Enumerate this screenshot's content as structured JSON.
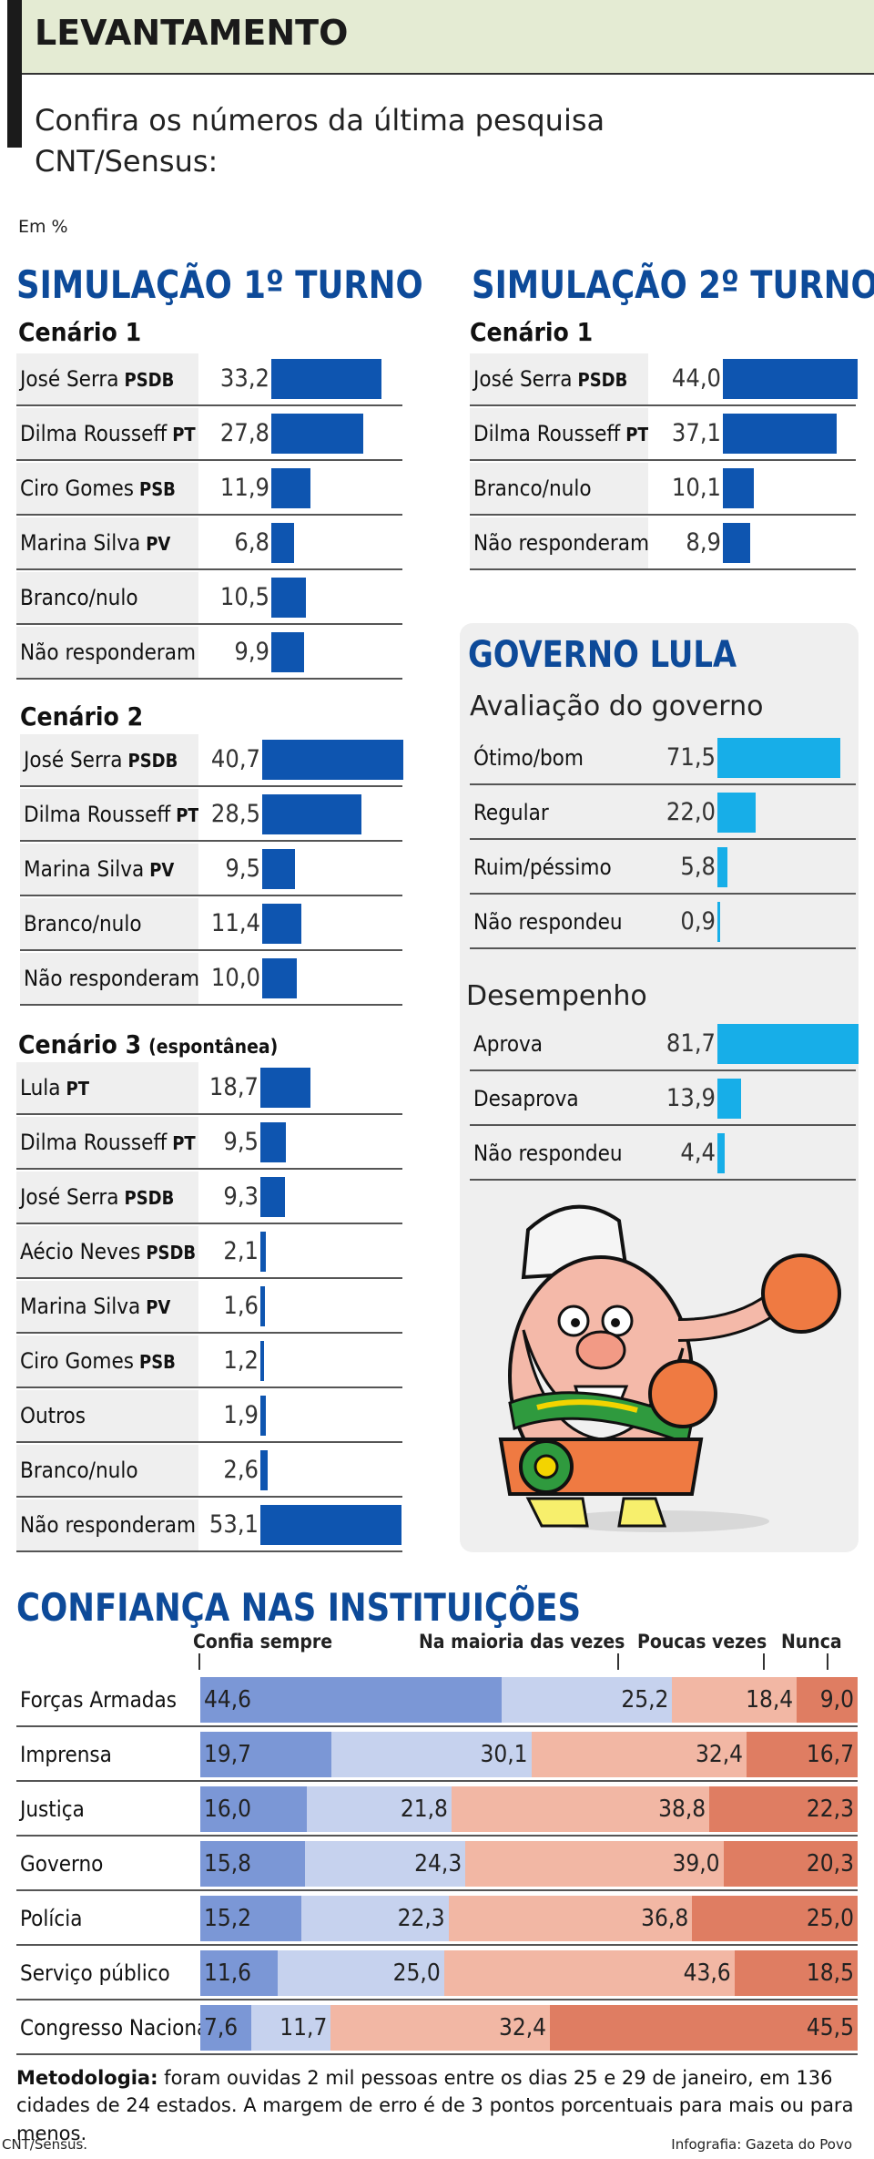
{
  "header": {
    "kicker": "LEVANTAMENTO",
    "intro": "Confira os números da última pesquisa CNT/Sensus:",
    "unit": "Em %"
  },
  "colors": {
    "dark_bar": "#0e55b0",
    "light_bar": "#17aee8",
    "title": "#0d4a99"
  },
  "chart_data": [
    {
      "type": "bar",
      "title": "SIMULAÇÃO 1º TURNO",
      "subtitle": "Cenário 1",
      "categories": [
        "José Serra",
        "Dilma Rousseff",
        "Ciro Gomes",
        "Marina Silva",
        "Branco/nulo",
        "Não responderam"
      ],
      "parties": [
        "PSDB",
        "PT",
        "PSB",
        "PV",
        "",
        ""
      ],
      "values": [
        33.2,
        27.8,
        11.9,
        6.8,
        10.5,
        9.9
      ],
      "labels": [
        "33,2",
        "27,8",
        "11,9",
        "6,8",
        "10,5",
        "9,9"
      ]
    },
    {
      "type": "bar",
      "subtitle": "Cenário 2",
      "categories": [
        "José Serra",
        "Dilma Rousseff",
        "Marina Silva",
        "Branco/nulo",
        "Não responderam"
      ],
      "parties": [
        "PSDB",
        "PT",
        "PV",
        "",
        ""
      ],
      "values": [
        40.7,
        28.5,
        9.5,
        11.4,
        10.0
      ],
      "labels": [
        "40,7",
        "28,5",
        "9,5",
        "11,4",
        "10,0"
      ]
    },
    {
      "type": "bar",
      "subtitle": "Cenário 3",
      "note": "(espontânea)",
      "categories": [
        "Lula",
        "Dilma Rousseff",
        "José Serra",
        "Aécio Neves",
        "Marina Silva",
        "Ciro Gomes",
        "Outros",
        "Branco/nulo",
        "Não responderam"
      ],
      "parties": [
        "PT",
        "PT",
        "PSDB",
        "PSDB",
        "PV",
        "PSB",
        "",
        "",
        ""
      ],
      "values": [
        18.7,
        9.5,
        9.3,
        2.1,
        1.6,
        1.2,
        1.9,
        2.6,
        53.1
      ],
      "labels": [
        "18,7",
        "9,5",
        "9,3",
        "2,1",
        "1,6",
        "1,2",
        "1,9",
        "2,6",
        "53,1"
      ]
    },
    {
      "type": "bar",
      "title": "SIMULAÇÃO 2º TURNO",
      "subtitle": "Cenário 1",
      "categories": [
        "José Serra",
        "Dilma Rousseff",
        "Branco/nulo",
        "Não responderam"
      ],
      "parties": [
        "PSDB",
        "PT",
        "",
        ""
      ],
      "values": [
        44.0,
        37.1,
        10.1,
        8.9
      ],
      "labels": [
        "44,0",
        "37,1",
        "10,1",
        "8,9"
      ]
    },
    {
      "type": "bar",
      "title": "GOVERNO LULA",
      "subtitle": "Avaliação do governo",
      "categories": [
        "Ótimo/bom",
        "Regular",
        "Ruim/péssimo",
        "Não respondeu"
      ],
      "values": [
        71.5,
        22.0,
        5.8,
        0.9
      ],
      "labels": [
        "71,5",
        "22,0",
        "5,8",
        "0,9"
      ]
    },
    {
      "type": "bar",
      "subtitle": "Desempenho",
      "categories": [
        "Aprova",
        "Desaprova",
        "Não respondeu"
      ],
      "values": [
        81.7,
        13.9,
        4.4
      ],
      "labels": [
        "81,7",
        "13,9",
        "4,4"
      ]
    },
    {
      "type": "bar",
      "stacked": true,
      "title": "CONFIANÇA NAS INSTITUIÇÕES",
      "series_names": [
        "Confia sempre",
        "Na maioria das vezes",
        "Poucas vezes",
        "Nunca"
      ],
      "categories": [
        "Forças Armadas",
        "Imprensa",
        "Justiça",
        "Governo",
        "Polícia",
        "Serviço público",
        "Congresso Nacional"
      ],
      "values": [
        [
          44.6,
          25.2,
          18.4,
          9.0
        ],
        [
          19.7,
          30.1,
          32.4,
          16.7
        ],
        [
          16.0,
          21.8,
          38.8,
          22.3
        ],
        [
          15.8,
          24.3,
          39.0,
          20.3
        ],
        [
          15.2,
          22.3,
          36.8,
          25.0
        ],
        [
          11.6,
          25.0,
          43.6,
          18.5
        ],
        [
          7.6,
          11.7,
          32.4,
          45.5
        ]
      ],
      "labels": [
        [
          "44,6",
          "25,2",
          "18,4",
          "9,0"
        ],
        [
          "19,7",
          "30,1",
          "32,4",
          "16,7"
        ],
        [
          "16,0",
          "21,8",
          "38,8",
          "22,3"
        ],
        [
          "15,8",
          "24,3",
          "39,0",
          "20,3"
        ],
        [
          "15,2",
          "22,3",
          "36,8",
          "25,0"
        ],
        [
          "11,6",
          "25,0",
          "43,6",
          "18,5"
        ],
        [
          "7,6",
          "11,7",
          "32,4",
          "45,5"
        ]
      ],
      "colors": [
        "#7b97d6",
        "#c6d2ee",
        "#f2b7a4",
        "#df7d62"
      ]
    }
  ],
  "footer": {
    "method_label": "Metodologia:",
    "method_text": " foram ouvidas 2 mil pessoas entre os dias 25 e 29 de janeiro, em 136 cidades de 24 estados. A margem de erro é de 3 pontos porcentuais para mais ou para menos.",
    "source": "CNT/Sensus.",
    "credit": "Infografia: Gazeta do Povo"
  }
}
